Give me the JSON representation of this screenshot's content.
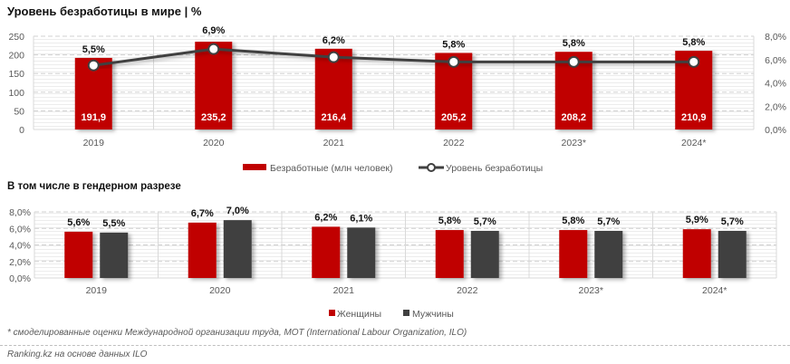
{
  "title": "Уровень безработицы в мире | %",
  "subtitle": "В том числе в гендерном разрезе",
  "footnote": "* смоделированные оценки Международной организации труда, МОТ (International Labour Organization, ILO)",
  "source": "Ranking.kz на основе данных ILO",
  "colors": {
    "red": "#c00000",
    "dark": "#404040",
    "line": "#404040"
  },
  "chart_data": [
    {
      "type": "bar",
      "title": "Уровень безработицы в мире | %",
      "categories": [
        "2019",
        "2020",
        "2021",
        "2022",
        "2023*",
        "2024*"
      ],
      "series": [
        {
          "name": "Безработные (млн человек)",
          "kind": "bar",
          "axis": "left",
          "values": [
            191.9,
            235.2,
            216.4,
            205.2,
            208.2,
            210.9
          ],
          "labels": [
            "191,9",
            "235,2",
            "216,4",
            "205,2",
            "208,2",
            "210,9"
          ]
        },
        {
          "name": "Уровень безработицы",
          "kind": "line",
          "axis": "right",
          "values": [
            5.5,
            6.9,
            6.2,
            5.8,
            5.8,
            5.8
          ],
          "labels": [
            "5,5%",
            "6,9%",
            "6,2%",
            "5,8%",
            "5,8%",
            "5,8%"
          ]
        }
      ],
      "y_left": {
        "ylim": [
          0,
          250
        ],
        "ticks": [
          "0",
          "50",
          "100",
          "150",
          "200",
          "250"
        ]
      },
      "y_right": {
        "ylim": [
          0,
          8
        ],
        "ticks": [
          "0,0%",
          "2,0%",
          "4,0%",
          "6,0%",
          "8,0%"
        ]
      },
      "legend": {
        "position": "bottom",
        "items": [
          "Безработные (млн человек)",
          "Уровень безработицы"
        ]
      },
      "grid": true
    },
    {
      "type": "bar",
      "title": "В том числе в гендерном разрезе",
      "categories": [
        "2019",
        "2020",
        "2021",
        "2022",
        "2023*",
        "2024*"
      ],
      "series": [
        {
          "name": "Женщины",
          "values": [
            5.6,
            6.7,
            6.2,
            5.8,
            5.8,
            5.9
          ],
          "labels": [
            "5,6%",
            "6,7%",
            "6,2%",
            "5,8%",
            "5,8%",
            "5,9%"
          ]
        },
        {
          "name": "Мужчины",
          "values": [
            5.5,
            7.0,
            6.1,
            5.7,
            5.7,
            5.7
          ],
          "labels": [
            "5,5%",
            "7,0%",
            "6,1%",
            "5,7%",
            "5,7%",
            "5,7%"
          ]
        }
      ],
      "y": {
        "ylim": [
          0,
          8
        ],
        "ticks": [
          "0,0%",
          "2,0%",
          "4,0%",
          "6,0%",
          "8,0%"
        ]
      },
      "legend": {
        "position": "bottom",
        "items": [
          "Женщины",
          "Мужчины"
        ]
      },
      "grid": true
    }
  ]
}
